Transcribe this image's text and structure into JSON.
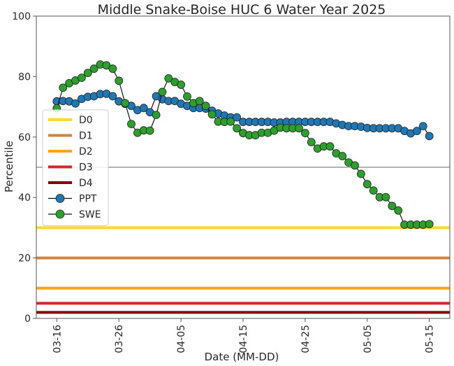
{
  "chart_data": {
    "type": "line",
    "title": "Middle Snake-Boise HUC 6 Water Year 2025",
    "xlabel": "Date (MM-DD)",
    "ylabel": "Percentile",
    "ylim": [
      0,
      100
    ],
    "yticks": [
      0,
      20,
      40,
      60,
      80,
      100
    ],
    "xticks": [
      {
        "label": "03-16",
        "day": 0
      },
      {
        "label": "03-26",
        "day": 10
      },
      {
        "label": "04-05",
        "day": 20
      },
      {
        "label": "04-15",
        "day": 30
      },
      {
        "label": "04-25",
        "day": 40
      },
      {
        "label": "05-05",
        "day": 50
      },
      {
        "label": "05-15",
        "day": 60
      }
    ],
    "xlim_days": [
      -3.3,
      63.3
    ],
    "reference_line": {
      "y": 50,
      "color": "#999999"
    },
    "drought_levels": [
      {
        "name": "D0",
        "y": 30,
        "color": "#FFD92F"
      },
      {
        "name": "D1",
        "y": 20,
        "color": "#CD853F"
      },
      {
        "name": "D2",
        "y": 10,
        "color": "#FFA31A"
      },
      {
        "name": "D3",
        "y": 5,
        "color": "#D62728"
      },
      {
        "name": "D4",
        "y": 2,
        "color": "#8B0000"
      }
    ],
    "series": [
      {
        "name": "PPT",
        "color": "#1F77B4",
        "start_day": 0,
        "values": [
          71.8,
          71.9,
          71.8,
          71.1,
          72.6,
          73.3,
          73.5,
          74.2,
          74.3,
          73.5,
          71.8,
          71.0,
          70.3,
          68.9,
          69.6,
          68.2,
          73.5,
          72.5,
          71.9,
          71.9,
          71.0,
          70.3,
          69.6,
          69.6,
          69.4,
          68.7,
          67.8,
          67.1,
          66.5,
          66.5,
          65.0,
          65.0,
          65.0,
          65.0,
          65.0,
          64.8,
          64.8,
          65.0,
          65.0,
          65.0,
          65.0,
          65.0,
          65.0,
          65.0,
          65.0,
          64.5,
          64.0,
          63.6,
          63.6,
          63.4,
          63.0,
          62.9,
          62.9,
          62.9,
          62.9,
          62.9,
          62.0,
          61.2,
          62.0,
          63.6,
          60.3
        ]
      },
      {
        "name": "SWE",
        "color": "#2CA02C",
        "start_day": 0,
        "values": [
          69.5,
          76.3,
          77.8,
          78.7,
          79.6,
          81.2,
          82.6,
          84.0,
          83.7,
          82.6,
          78.6,
          71.2,
          64.3,
          61.4,
          62.2,
          62.1,
          67.3,
          74.9,
          79.4,
          78.2,
          77.3,
          73.4,
          71.2,
          71.9,
          70.3,
          67.5,
          65.1,
          65.0,
          65.1,
          62.9,
          61.3,
          60.6,
          60.6,
          61.4,
          61.4,
          62.1,
          63.1,
          62.9,
          62.9,
          62.9,
          61.3,
          58.3,
          56.2,
          56.9,
          56.9,
          54.6,
          53.7,
          51.6,
          50.6,
          47.8,
          44.4,
          42.3,
          40.1,
          40.1,
          37.2,
          35.7,
          31.0,
          31.0,
          31.0,
          31.0,
          31.2
        ]
      }
    ],
    "legend": {
      "position": "center-left",
      "entries": [
        "D0",
        "D1",
        "D2",
        "D3",
        "D4",
        "PPT",
        "SWE"
      ]
    }
  }
}
